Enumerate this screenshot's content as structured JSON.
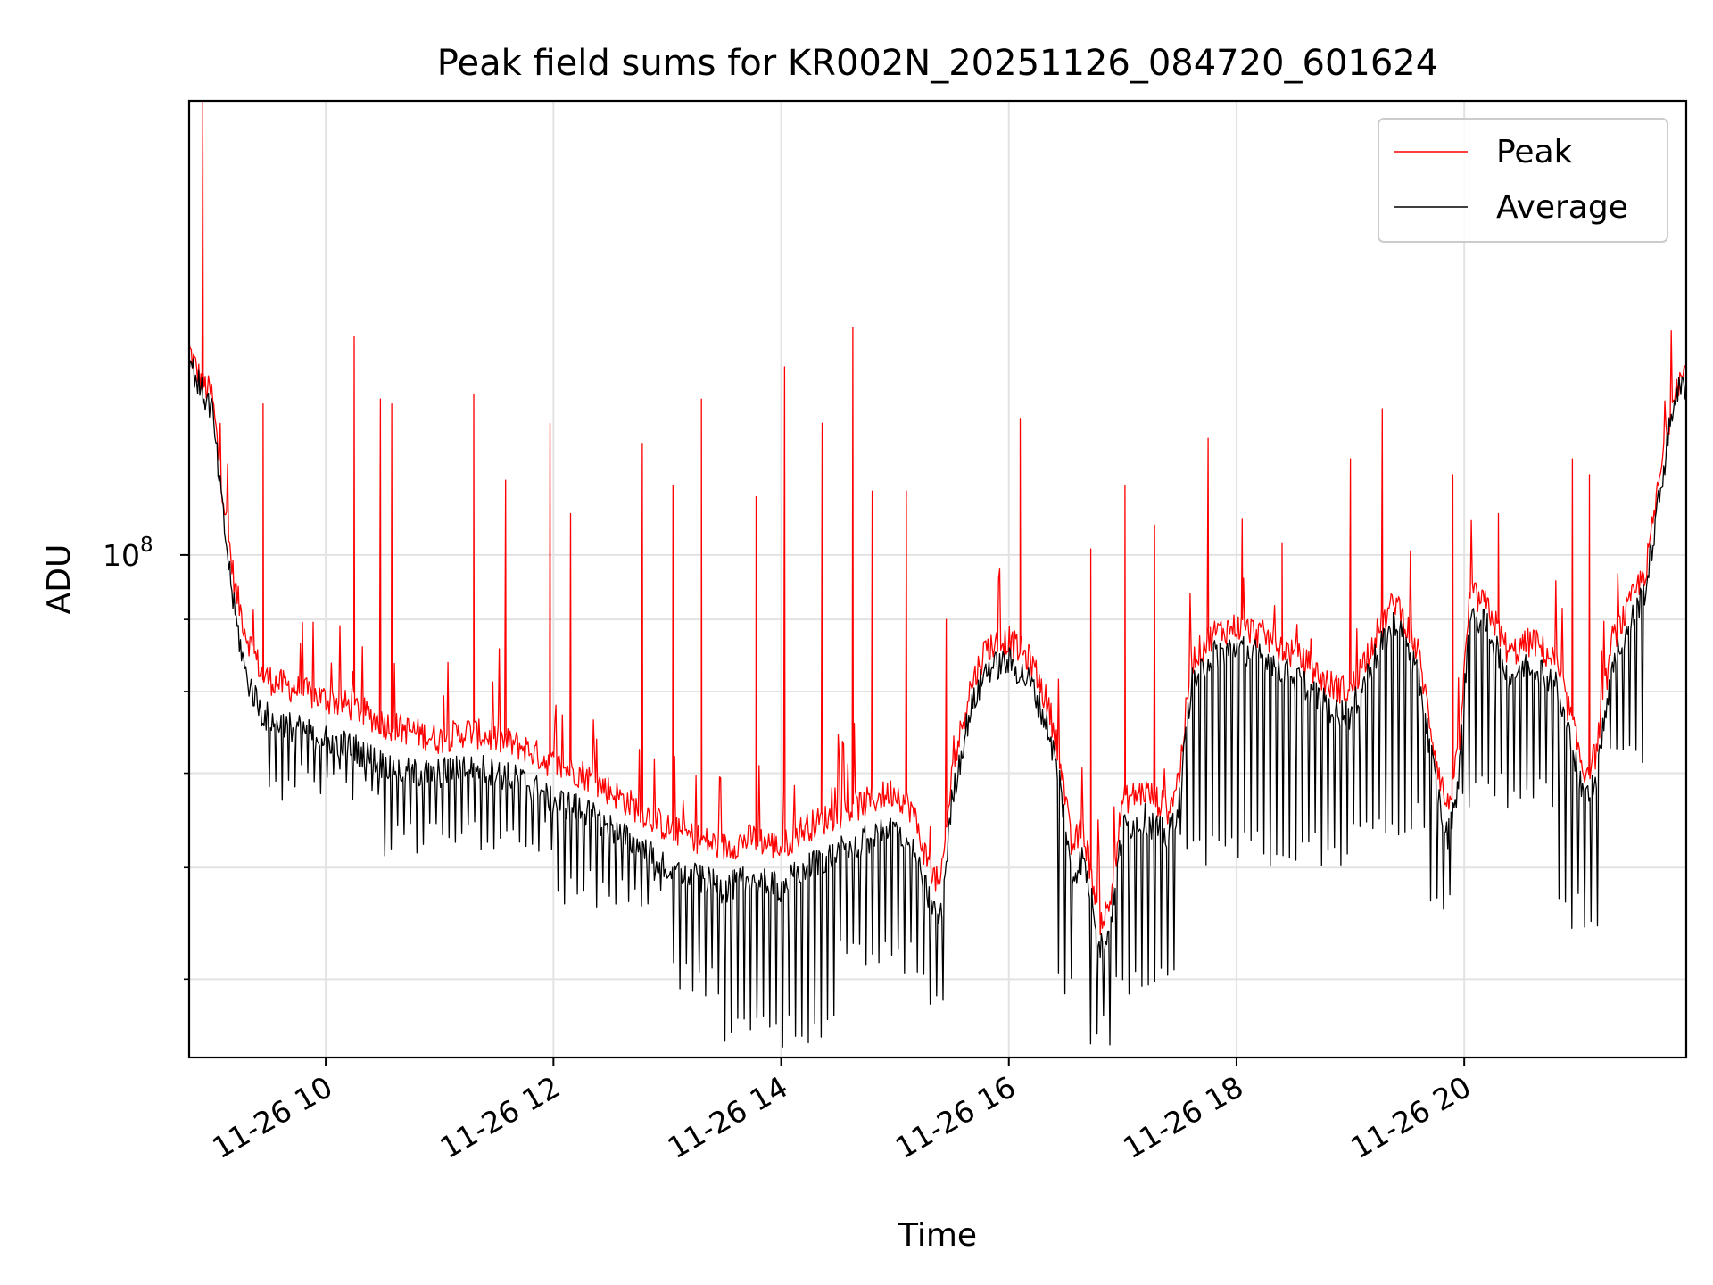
{
  "chart_data": {
    "type": "line",
    "title": "Peak field sums for KR002N_20251126_084720_601624",
    "xlabel": "Time",
    "ylabel": "ADU",
    "yscale": "log",
    "ylim": [
      44000000,
      210000000
    ],
    "xlim_hours": [
      8.8,
      21.95
    ],
    "grid": true,
    "legend_position": "upper right",
    "x_ticks": [
      {
        "hour": 10,
        "label": "11-26 10"
      },
      {
        "hour": 12,
        "label": "11-26 12"
      },
      {
        "hour": 14,
        "label": "11-26 14"
      },
      {
        "hour": 16,
        "label": "11-26 16"
      },
      {
        "hour": 18,
        "label": "11-26 18"
      },
      {
        "hour": 20,
        "label": "11-26 20"
      }
    ],
    "y_major_ticks": [
      {
        "value": 100000000,
        "base": "10",
        "exp": "8"
      }
    ],
    "y_minor_ticks": [
      50000000,
      60000000,
      70000000,
      80000000,
      90000000
    ],
    "series": [
      {
        "name": "Peak",
        "color": "#ff0000",
        "x_hours": [
          8.8,
          8.9,
          9.0,
          9.1,
          9.2,
          9.3,
          9.45,
          9.6,
          9.8,
          10.0,
          10.25,
          10.5,
          10.75,
          11.0,
          11.25,
          11.5,
          11.75,
          12.0,
          12.25,
          12.5,
          12.75,
          13.0,
          13.25,
          13.5,
          13.75,
          14.0,
          14.2,
          14.4,
          14.6,
          14.8,
          15.0,
          15.15,
          15.3,
          15.4,
          15.5,
          15.65,
          15.8,
          16.0,
          16.2,
          16.35,
          16.45,
          16.55,
          16.65,
          16.75,
          16.8,
          16.88,
          17.0,
          17.2,
          17.4,
          17.5,
          17.6,
          17.8,
          18.0,
          18.2,
          18.4,
          18.6,
          18.8,
          19.0,
          19.2,
          19.4,
          19.6,
          19.75,
          19.85,
          19.95,
          20.05,
          20.2,
          20.4,
          20.6,
          20.8,
          20.95,
          21.05,
          21.15,
          21.3,
          21.45,
          21.6,
          21.75,
          21.85,
          21.95
        ],
        "values": [
          140000000,
          133000000,
          130000000,
          110000000,
          95000000,
          88000000,
          82000000,
          81000000,
          80000000,
          79000000,
          78000000,
          76000000,
          75000000,
          74000000,
          75000000,
          74000000,
          73000000,
          71000000,
          70000000,
          68000000,
          66000000,
          64000000,
          63000000,
          62000000,
          63000000,
          62000000,
          64000000,
          65000000,
          66000000,
          67000000,
          68000000,
          66000000,
          60000000,
          58000000,
          70000000,
          80000000,
          86000000,
          87000000,
          84000000,
          78000000,
          72000000,
          62000000,
          64000000,
          58000000,
          55000000,
          56000000,
          67000000,
          68000000,
          66000000,
          70000000,
          84000000,
          88000000,
          89000000,
          88000000,
          86000000,
          84000000,
          81000000,
          80000000,
          87000000,
          93000000,
          85000000,
          72000000,
          66000000,
          72000000,
          94000000,
          92000000,
          85000000,
          87000000,
          84000000,
          76000000,
          70000000,
          72000000,
          87000000,
          92000000,
          98000000,
          118000000,
          132000000,
          135000000
        ],
        "spikes": [
          {
            "hour": 8.92,
            "value": 210000000
          },
          {
            "hour": 9.45,
            "value": 128000000
          },
          {
            "hour": 10.25,
            "value": 143000000
          },
          {
            "hour": 10.48,
            "value": 129000000
          },
          {
            "hour": 10.58,
            "value": 128000000
          },
          {
            "hour": 11.3,
            "value": 130000000
          },
          {
            "hour": 11.58,
            "value": 113000000
          },
          {
            "hour": 11.97,
            "value": 124000000
          },
          {
            "hour": 12.15,
            "value": 107000000
          },
          {
            "hour": 12.78,
            "value": 120000000
          },
          {
            "hour": 13.05,
            "value": 112000000
          },
          {
            "hour": 13.3,
            "value": 129000000
          },
          {
            "hour": 13.78,
            "value": 110000000
          },
          {
            "hour": 14.03,
            "value": 136000000
          },
          {
            "hour": 14.36,
            "value": 124000000
          },
          {
            "hour": 14.63,
            "value": 145000000
          },
          {
            "hour": 14.8,
            "value": 111000000
          },
          {
            "hour": 15.1,
            "value": 111000000
          },
          {
            "hour": 15.45,
            "value": 90000000
          },
          {
            "hour": 16.1,
            "value": 125000000
          },
          {
            "hour": 16.72,
            "value": 101000000
          },
          {
            "hour": 17.02,
            "value": 112000000
          },
          {
            "hour": 17.28,
            "value": 105000000
          },
          {
            "hour": 17.75,
            "value": 121000000
          },
          {
            "hour": 18.05,
            "value": 106000000
          },
          {
            "hour": 18.4,
            "value": 102000000
          },
          {
            "hour": 19.0,
            "value": 117000000
          },
          {
            "hour": 19.28,
            "value": 127000000
          },
          {
            "hour": 19.9,
            "value": 114000000
          },
          {
            "hour": 20.3,
            "value": 107000000
          },
          {
            "hour": 20.95,
            "value": 117000000
          },
          {
            "hour": 21.1,
            "value": 114000000
          }
        ]
      },
      {
        "name": "Average",
        "color": "#000000",
        "x_hours": [
          8.8,
          8.9,
          9.0,
          9.1,
          9.2,
          9.3,
          9.45,
          9.6,
          9.8,
          10.0,
          10.25,
          10.5,
          10.75,
          11.0,
          11.25,
          11.5,
          11.75,
          12.0,
          12.25,
          12.5,
          12.75,
          13.0,
          13.25,
          13.5,
          13.75,
          14.0,
          14.2,
          14.4,
          14.6,
          14.8,
          15.0,
          15.15,
          15.3,
          15.4,
          15.5,
          15.65,
          15.8,
          16.0,
          16.2,
          16.35,
          16.45,
          16.55,
          16.65,
          16.75,
          16.8,
          16.88,
          17.0,
          17.2,
          17.4,
          17.5,
          17.6,
          17.8,
          18.0,
          18.2,
          18.4,
          18.6,
          18.8,
          19.0,
          19.2,
          19.4,
          19.6,
          19.75,
          19.85,
          19.95,
          20.05,
          20.2,
          20.4,
          20.6,
          20.8,
          20.95,
          21.05,
          21.15,
          21.3,
          21.45,
          21.6,
          21.75,
          21.85,
          21.95
        ],
        "values": [
          138000000,
          131000000,
          127000000,
          106000000,
          91000000,
          82000000,
          77000000,
          76000000,
          75000000,
          74000000,
          73000000,
          71000000,
          70000000,
          70000000,
          71000000,
          70000000,
          69000000,
          67000000,
          66000000,
          64000000,
          62000000,
          60000000,
          59000000,
          58000000,
          59000000,
          58000000,
          60000000,
          61000000,
          62000000,
          63000000,
          64000000,
          62000000,
          57000000,
          55000000,
          67000000,
          77000000,
          83000000,
          84000000,
          81000000,
          75000000,
          69000000,
          59000000,
          61000000,
          56000000,
          53000000,
          54000000,
          64000000,
          65000000,
          63000000,
          67000000,
          81000000,
          85000000,
          86000000,
          85000000,
          83000000,
          81000000,
          78000000,
          77000000,
          84000000,
          90000000,
          82000000,
          69000000,
          63000000,
          69000000,
          91000000,
          89000000,
          82000000,
          84000000,
          81000000,
          73000000,
          67000000,
          69000000,
          84000000,
          89000000,
          95000000,
          115000000,
          130000000,
          132000000
        ],
        "dips": [
          {
            "from_hour": 9.5,
            "to_hour": 10.5,
            "value": 69000000
          },
          {
            "from_hour": 10.5,
            "to_hour": 12.0,
            "value": 63000000
          },
          {
            "from_hour": 12.0,
            "to_hour": 13.0,
            "value": 58000000
          },
          {
            "from_hour": 13.0,
            "to_hour": 13.5,
            "value": 50000000
          },
          {
            "from_hour": 13.5,
            "to_hour": 14.5,
            "value": 46000000
          },
          {
            "from_hour": 14.5,
            "to_hour": 15.2,
            "value": 52000000
          },
          {
            "from_hour": 15.2,
            "to_hour": 15.45,
            "value": 49000000
          },
          {
            "from_hour": 16.4,
            "to_hour": 16.6,
            "value": 50000000
          },
          {
            "from_hour": 16.7,
            "to_hour": 16.9,
            "value": 46000000
          },
          {
            "from_hour": 16.9,
            "to_hour": 17.5,
            "value": 50000000
          },
          {
            "from_hour": 17.5,
            "to_hour": 19.0,
            "value": 62000000
          },
          {
            "from_hour": 19.0,
            "to_hour": 19.7,
            "value": 65000000
          },
          {
            "from_hour": 19.7,
            "to_hour": 19.9,
            "value": 56000000
          },
          {
            "from_hour": 19.9,
            "to_hour": 20.8,
            "value": 68000000
          },
          {
            "from_hour": 20.8,
            "to_hour": 21.2,
            "value": 56000000
          },
          {
            "from_hour": 21.2,
            "to_hour": 21.6,
            "value": 73000000
          }
        ]
      }
    ]
  }
}
